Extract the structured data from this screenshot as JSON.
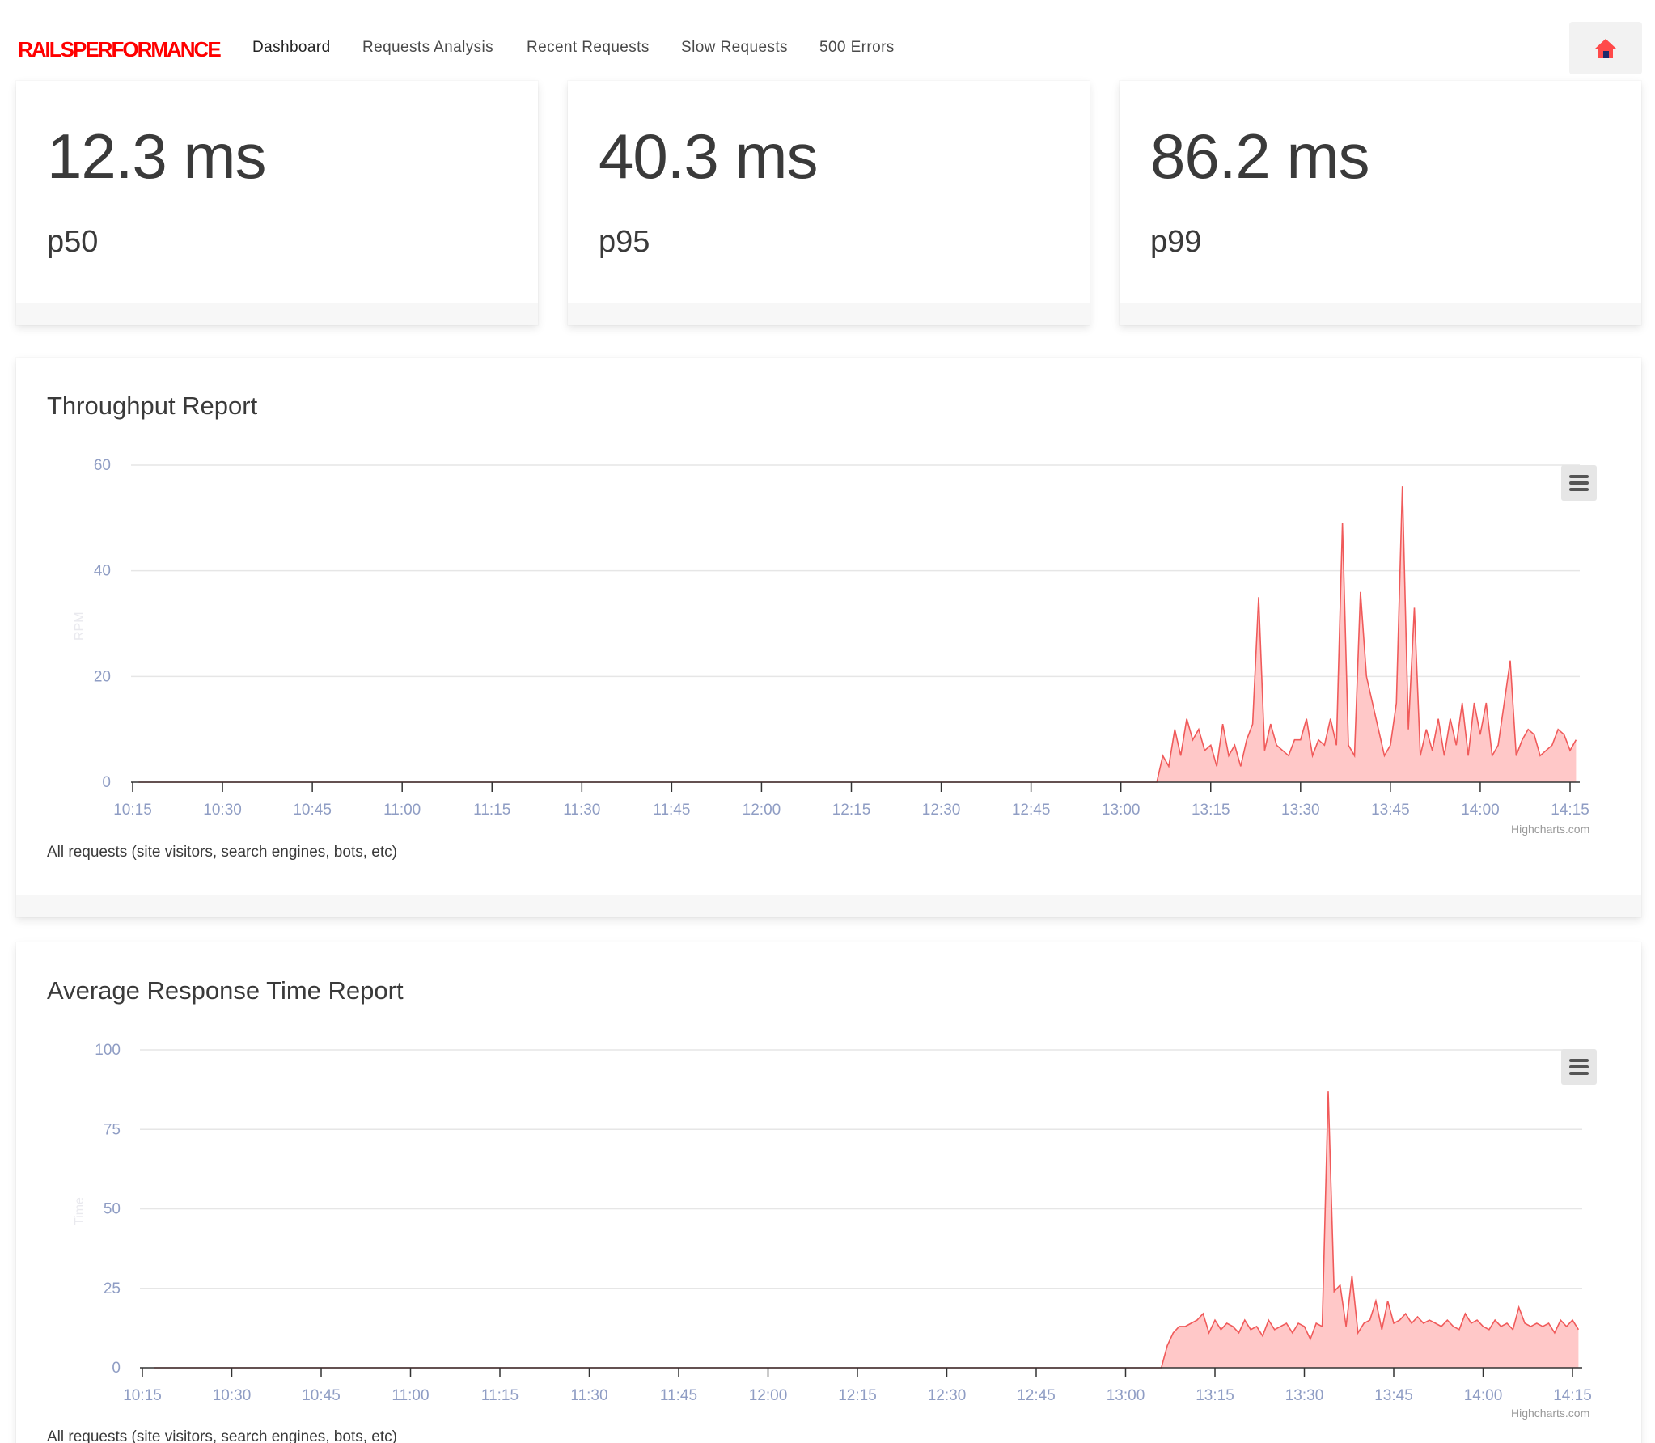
{
  "nav": {
    "brand": "RAILSPERFORMANCE",
    "items": [
      {
        "label": "Dashboard",
        "active": true
      },
      {
        "label": "Requests Analysis"
      },
      {
        "label": "Recent Requests"
      },
      {
        "label": "Slow Requests"
      },
      {
        "label": "500 Errors"
      }
    ],
    "home_icon": "home-icon"
  },
  "metrics": [
    {
      "value": "12.3 ms",
      "label": "p50"
    },
    {
      "value": "40.3 ms",
      "label": "p95"
    },
    {
      "value": "86.2 ms",
      "label": "p99"
    }
  ],
  "reports": {
    "throughput": {
      "title": "Throughput Report",
      "caption": "All requests (site visitors, search engines, bots, etc)",
      "credits": "Highcharts.com",
      "menu_icon": "menu-icon"
    },
    "response": {
      "title": "Average Response Time Report",
      "caption": "All requests (site visitors, search engines, bots, etc)",
      "credits": "Highcharts.com",
      "menu_icon": "menu-icon"
    }
  },
  "colors": {
    "brand": "#ff0000",
    "series_line": "#f05a5a",
    "series_fill": "#ffc8c8",
    "axis_label": "#8f9dc4",
    "grid": "#e6e6e6"
  },
  "chart_data": [
    {
      "type": "area",
      "title": "Throughput Report",
      "ylabel": "RPM",
      "ylim": [
        0,
        60
      ],
      "yticks": [
        0,
        20,
        40,
        60
      ],
      "x_ticks": [
        "10:15",
        "10:30",
        "10:45",
        "11:00",
        "11:15",
        "11:30",
        "11:45",
        "12:00",
        "12:15",
        "12:30",
        "12:45",
        "13:00",
        "13:15",
        "13:30",
        "13:45",
        "14:00",
        "14:15"
      ],
      "grid": true,
      "series": [
        {
          "x": [
            "10:16",
            "13:00",
            "13:06",
            "13:07",
            "13:08",
            "13:09",
            "13:10",
            "13:11",
            "13:12",
            "13:13",
            "13:14",
            "13:15",
            "13:16",
            "13:17",
            "13:18",
            "13:19",
            "13:20",
            "13:21",
            "13:22",
            "13:23",
            "13:24",
            "13:25",
            "13:26",
            "13:27",
            "13:28",
            "13:29",
            "13:30",
            "13:31",
            "13:32",
            "13:33",
            "13:34",
            "13:35",
            "13:36",
            "13:37",
            "13:38",
            "13:39",
            "13:40",
            "13:41",
            "13:42",
            "13:43",
            "13:44",
            "13:45",
            "13:46",
            "13:47",
            "13:48",
            "13:49",
            "13:50",
            "13:51",
            "13:52",
            "13:53",
            "13:54",
            "13:55",
            "13:56",
            "13:57",
            "13:58",
            "13:59",
            "14:00",
            "14:01",
            "14:02",
            "14:03",
            "14:04",
            "14:05",
            "14:06",
            "14:07",
            "14:08",
            "14:09",
            "14:10",
            "14:11",
            "14:12",
            "14:13",
            "14:14",
            "14:15",
            "14:16"
          ],
          "values": [
            0,
            0,
            0,
            5,
            3,
            10,
            5,
            12,
            8,
            10,
            6,
            7,
            3,
            11,
            5,
            7,
            3,
            8,
            11,
            35,
            6,
            11,
            7,
            6,
            5,
            8,
            8,
            12,
            5,
            8,
            7,
            12,
            7,
            49,
            7,
            5,
            36,
            20,
            15,
            10,
            5,
            7,
            15,
            56,
            10,
            33,
            5,
            10,
            6,
            12,
            5,
            12,
            7,
            15,
            5,
            15,
            9,
            15,
            5,
            7,
            15,
            23,
            5,
            8,
            10,
            9,
            5,
            6,
            7,
            10,
            9,
            6,
            8
          ]
        }
      ]
    },
    {
      "type": "area",
      "title": "Average Response Time Report",
      "ylabel": "Time",
      "ylim": [
        0,
        100
      ],
      "yticks": [
        0,
        25,
        50,
        75,
        100
      ],
      "x_ticks": [
        "10:15",
        "10:30",
        "10:45",
        "11:00",
        "11:15",
        "11:30",
        "11:45",
        "12:00",
        "12:15",
        "12:30",
        "12:45",
        "13:00",
        "13:15",
        "13:30",
        "13:45",
        "14:00",
        "14:15"
      ],
      "grid": true,
      "series": [
        {
          "x": [
            "10:17",
            "13:00",
            "13:06",
            "13:07",
            "13:08",
            "13:09",
            "13:10",
            "13:11",
            "13:12",
            "13:13",
            "13:14",
            "13:15",
            "13:16",
            "13:17",
            "13:18",
            "13:19",
            "13:20",
            "13:21",
            "13:22",
            "13:23",
            "13:24",
            "13:25",
            "13:26",
            "13:27",
            "13:28",
            "13:29",
            "13:30",
            "13:31",
            "13:32",
            "13:33",
            "13:34",
            "13:35",
            "13:36",
            "13:37",
            "13:38",
            "13:39",
            "13:40",
            "13:41",
            "13:42",
            "13:43",
            "13:44",
            "13:45",
            "13:46",
            "13:47",
            "13:48",
            "13:49",
            "13:50",
            "13:51",
            "13:52",
            "13:53",
            "13:54",
            "13:55",
            "13:56",
            "13:57",
            "13:58",
            "13:59",
            "14:00",
            "14:01",
            "14:02",
            "14:03",
            "14:04",
            "14:05",
            "14:06",
            "14:07",
            "14:08",
            "14:09",
            "14:10",
            "14:11",
            "14:12",
            "14:13",
            "14:14",
            "14:15",
            "14:16"
          ],
          "values": [
            0,
            0,
            0,
            7,
            11,
            13,
            13,
            14,
            15,
            17,
            11,
            15,
            12,
            14,
            13,
            11,
            15,
            12,
            13,
            10,
            15,
            12,
            13,
            14,
            11,
            14,
            13,
            9,
            14,
            13,
            87,
            24,
            26,
            13,
            29,
            11,
            14,
            15,
            21,
            12,
            21,
            14,
            15,
            17,
            14,
            16,
            14,
            15,
            14,
            13,
            15,
            13,
            12,
            17,
            14,
            15,
            13,
            12,
            15,
            13,
            14,
            12,
            19,
            14,
            13,
            14,
            13,
            14,
            11,
            15,
            13,
            15,
            12
          ]
        }
      ]
    }
  ]
}
